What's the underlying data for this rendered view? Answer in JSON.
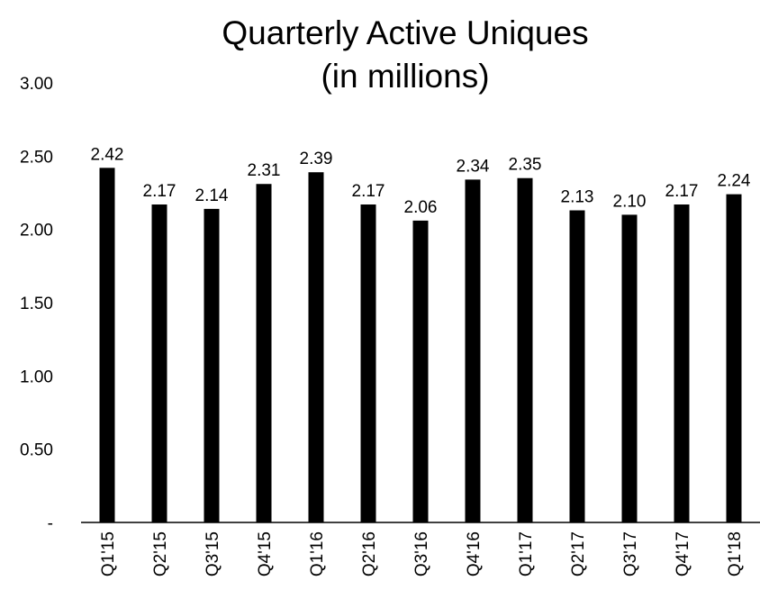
{
  "chart_data": {
    "type": "bar",
    "title_lines": [
      "Quarterly Active Uniques",
      "(in millions)"
    ],
    "xlabel": "",
    "ylabel": "",
    "categories": [
      "Q1'15",
      "Q2'15",
      "Q3'15",
      "Q4'15",
      "Q1'16",
      "Q2'16",
      "Q3'16",
      "Q4'16",
      "Q1'17",
      "Q2'17",
      "Q3'17",
      "Q4'17",
      "Q1'18"
    ],
    "values": [
      2.42,
      2.17,
      2.14,
      2.31,
      2.39,
      2.17,
      2.06,
      2.34,
      2.35,
      2.13,
      2.1,
      2.17,
      2.24
    ],
    "value_labels": [
      "2.42",
      "2.17",
      "2.14",
      "2.31",
      "2.39",
      "2.17",
      "2.06",
      "2.34",
      "2.35",
      "2.13",
      "2.10",
      "2.17",
      "2.24"
    ],
    "yticks": [
      0,
      0.5,
      1.0,
      1.5,
      2.0,
      2.5,
      3.0
    ],
    "ytick_labels": [
      "-",
      "0.50",
      "1.00",
      "1.50",
      "2.00",
      "2.50",
      "3.00"
    ],
    "ylim": [
      0,
      3.0
    ],
    "grid": false,
    "legend": "none",
    "bar_color": "#000000"
  }
}
